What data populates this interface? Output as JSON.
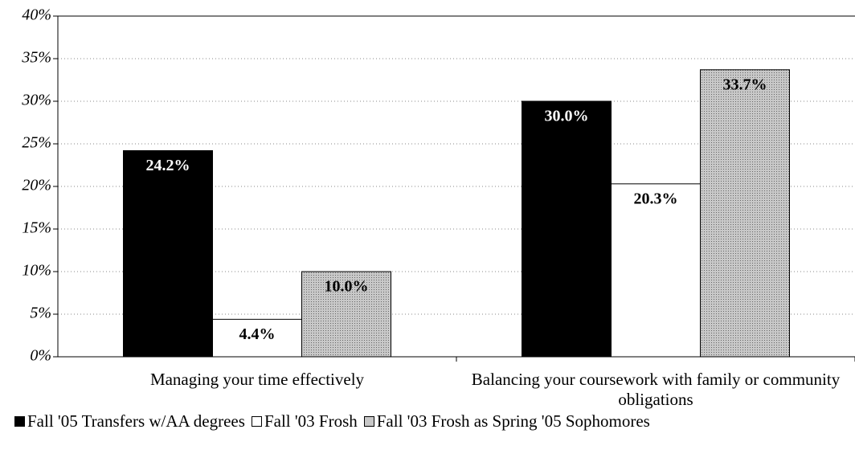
{
  "chart_data": {
    "type": "bar",
    "categories": [
      "Managing your time effectively",
      "Balancing your coursework with family or community obligations"
    ],
    "series": [
      {
        "name": "Fall '05 Transfers w/AA degrees",
        "color": "#000000",
        "values": [
          24.2,
          30.0
        ],
        "value_labels": [
          "24.2%",
          "30.0%"
        ]
      },
      {
        "name": "Fall '03 Frosh",
        "color": "#ffffff",
        "values": [
          4.4,
          20.3
        ],
        "value_labels": [
          "4.4%",
          "20.3%"
        ]
      },
      {
        "name": "Fall '03 Frosh as Spring '05 Sophomores",
        "color": "#c8c8c8",
        "values": [
          10.0,
          33.7
        ],
        "value_labels": [
          "10.0%",
          "33.7%"
        ]
      }
    ],
    "ylim": [
      0,
      40
    ],
    "yticks": [
      {
        "value": 0,
        "label": "0%"
      },
      {
        "value": 5,
        "label": "5%"
      },
      {
        "value": 10,
        "label": "10%"
      },
      {
        "value": 15,
        "label": "15%"
      },
      {
        "value": 20,
        "label": "20%"
      },
      {
        "value": 25,
        "label": "25%"
      },
      {
        "value": 30,
        "label": "30%"
      },
      {
        "value": 35,
        "label": "35%"
      },
      {
        "value": 40,
        "label": "40%"
      }
    ],
    "grid": true,
    "legend": "bottom"
  }
}
